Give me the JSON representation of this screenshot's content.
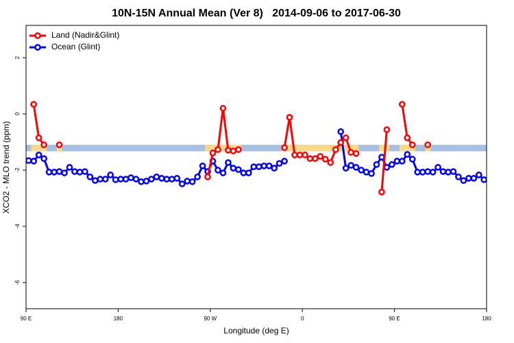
{
  "chart_data": {
    "type": "line",
    "title": "10N-15N Annual Mean (Ver 8)   2014-09-06 to 2017-06-30",
    "x_label": "Longitude (deg E)",
    "y_label": "XCO2 - MLO trend (ppm)",
    "xlim": [
      90,
      540
    ],
    "ylim": [
      -6.93,
      3.15
    ],
    "xticks": [
      {
        "value": 90,
        "label": "90 E"
      },
      180,
      {
        "value": 270,
        "label": "90 W"
      },
      {
        "value": 360,
        "label": "0"
      },
      {
        "value": 450,
        "label": "90 E"
      },
      {
        "value": 540,
        "label": "180"
      }
    ],
    "yticks": [
      -6,
      -4,
      -2,
      0,
      2
    ],
    "legend": "top-left",
    "band": {
      "ylim": [
        -1.33,
        -1.1
      ],
      "color": "#a7c0e2",
      "land_color": "#fbd98a"
    },
    "x": [
      92.5,
      97.5,
      102.5,
      107.5,
      112.5,
      117.5,
      122.5,
      127.5,
      132.5,
      137.5,
      142.5,
      147.5,
      152.5,
      157.5,
      162.5,
      167.5,
      172.5,
      177.5,
      182.5,
      187.5,
      192.5,
      197.5,
      202.5,
      207.5,
      212.5,
      217.5,
      222.5,
      227.5,
      232.5,
      237.5,
      242.5,
      247.5,
      252.5,
      257.5,
      262.5,
      267.5,
      272.5,
      277.5,
      282.5,
      287.5,
      292.5,
      297.5,
      302.5,
      307.5,
      312.5,
      317.5,
      322.5,
      327.5,
      332.5,
      337.5,
      342.5,
      347.5,
      352.5,
      357.5,
      362.5,
      367.5,
      372.5,
      377.5,
      382.5,
      387.5,
      392.5,
      397.5,
      402.5,
      407.5,
      412.5,
      417.5,
      422.5,
      427.5,
      432.5,
      437.5,
      442.5,
      447.5,
      452.5,
      457.5,
      462.5,
      467.5,
      472.5,
      477.5,
      482.5,
      487.5,
      492.5,
      497.5,
      502.5,
      507.5,
      512.5,
      517.5,
      522.5,
      527.5,
      532.5,
      537.5
    ],
    "series": [
      {
        "name": "Land (Nadir&Glint)",
        "color": "#ff0000",
        "values": [
          null,
          0.34,
          -0.85,
          -1.1,
          null,
          null,
          -1.1,
          null,
          null,
          null,
          null,
          null,
          null,
          null,
          null,
          null,
          null,
          null,
          null,
          null,
          null,
          null,
          null,
          null,
          null,
          null,
          null,
          null,
          null,
          null,
          null,
          null,
          null,
          null,
          null,
          -2.24,
          -1.39,
          -1.27,
          0.2,
          -1.29,
          -1.32,
          -1.27,
          null,
          null,
          null,
          null,
          null,
          null,
          null,
          null,
          -1.2,
          -0.12,
          -1.46,
          -1.46,
          -1.46,
          -1.59,
          -1.59,
          -1.51,
          -1.61,
          -1.73,
          -1.27,
          -1.02,
          -0.85,
          -1.37,
          -1.41,
          null,
          null,
          null,
          null,
          -2.78,
          -0.56,
          null,
          null,
          0.34,
          -0.85,
          -1.1,
          null,
          null,
          -1.1,
          null,
          null,
          null,
          null,
          null,
          null,
          null,
          null,
          null,
          null,
          null
        ]
      },
      {
        "name": "Ocean (Glint)",
        "color": "#0000ff",
        "values": [
          -1.66,
          -1.68,
          -1.46,
          -1.59,
          -2.07,
          -2.07,
          -2.05,
          -2.1,
          -1.9,
          -2.05,
          -2.07,
          -2.05,
          -2.24,
          -2.37,
          -2.32,
          -2.32,
          -2.17,
          -2.34,
          -2.32,
          -2.32,
          -2.27,
          -2.32,
          -2.41,
          -2.39,
          -2.32,
          -2.24,
          -2.29,
          -2.32,
          -2.32,
          -2.29,
          -2.49,
          -2.39,
          -2.41,
          -2.24,
          -1.85,
          -2.05,
          -1.68,
          -2.0,
          -2.1,
          -1.73,
          -1.93,
          -1.98,
          -2.1,
          -2.1,
          -1.88,
          -1.88,
          -1.85,
          -1.85,
          -1.93,
          -1.76,
          -1.68,
          null,
          null,
          null,
          null,
          null,
          null,
          null,
          null,
          null,
          null,
          -0.63,
          -1.93,
          -1.83,
          -1.9,
          -2.0,
          -2.07,
          -2.12,
          -1.8,
          -1.54,
          -1.9,
          -1.8,
          -1.68,
          -1.68,
          -1.44,
          -1.61,
          -2.07,
          -2.07,
          -2.05,
          -2.07,
          -1.9,
          -2.05,
          -2.07,
          -2.05,
          -2.24,
          -2.37,
          -2.29,
          -2.29,
          -2.17,
          -2.34
        ]
      }
    ]
  }
}
